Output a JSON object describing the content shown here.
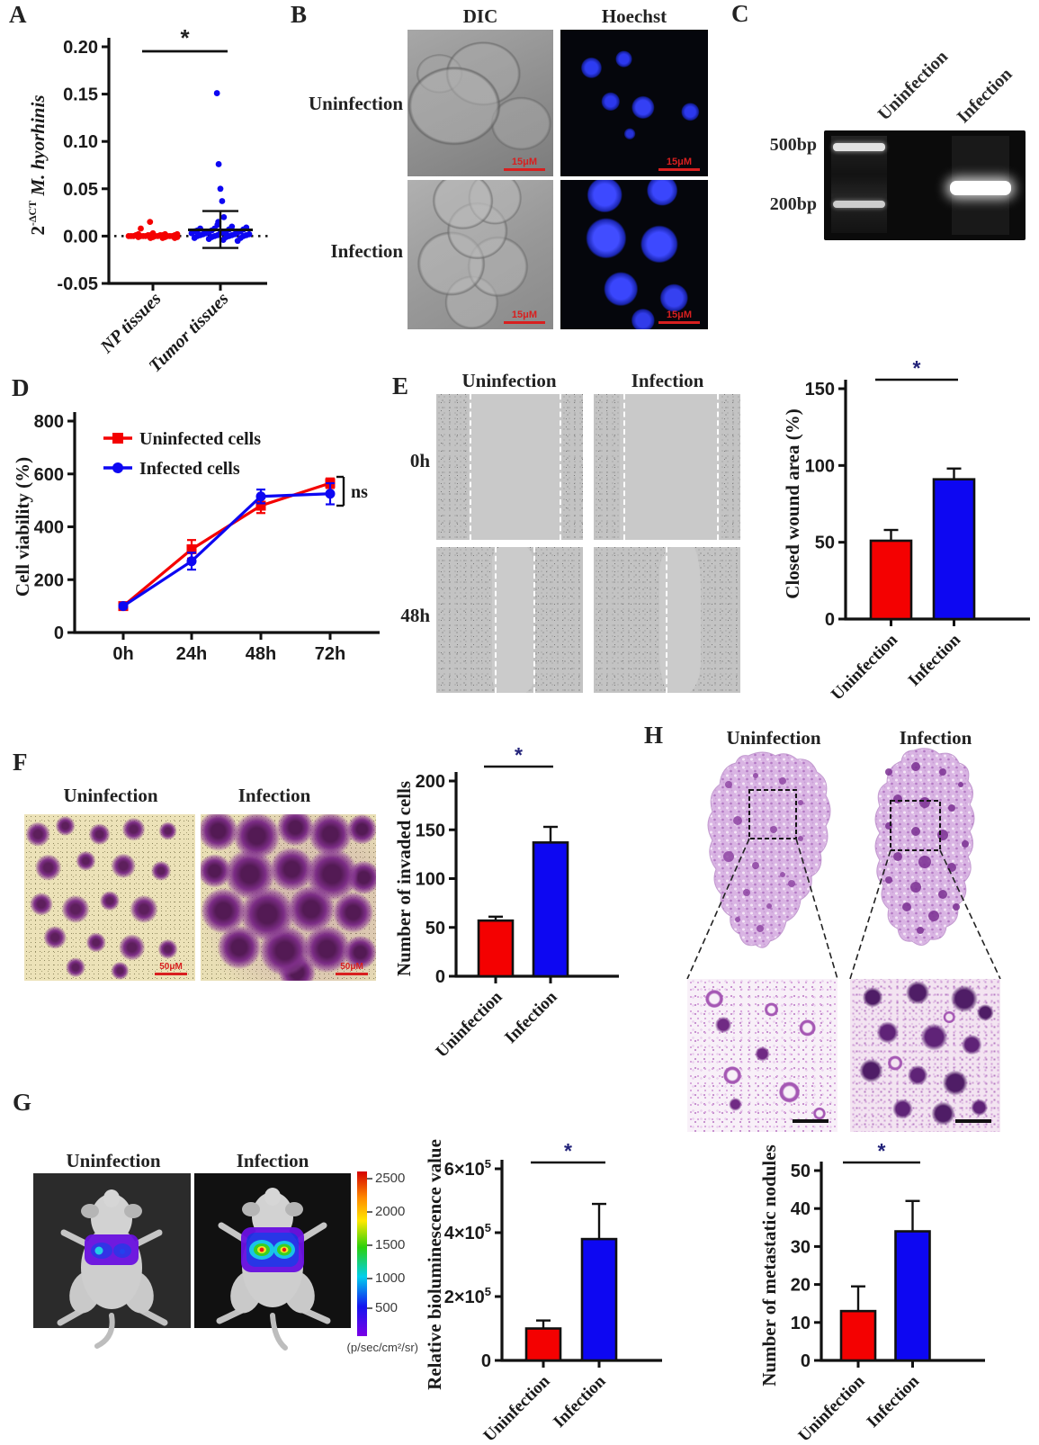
{
  "colors": {
    "red": "#f40101",
    "blue": "#0d07f2",
    "axis": "#111111",
    "star_black": "#222222",
    "star_navy": "#23237a",
    "scale_red": "#d81f1f"
  },
  "panel_a": {
    "letter": "A"
  },
  "panel_b": {
    "letter": "B",
    "col1": "DIC",
    "col2": "Hoechst",
    "row1": "Uninfection",
    "row2": "Infection",
    "scalebar": "15μM"
  },
  "panel_c": {
    "letter": "C",
    "marker1": "500bp",
    "marker2": "200bp",
    "lane1": "Uninfection",
    "lane2": "Infection"
  },
  "panel_d": {
    "letter": "D"
  },
  "panel_e": {
    "letter": "E",
    "col1": "Uninfection",
    "col2": "Infection",
    "row1": "0h",
    "row2": "48h"
  },
  "panel_f": {
    "letter": "F",
    "col1": "Uninfection",
    "col2": "Infection",
    "scalebar": "50μM"
  },
  "panel_g": {
    "letter": "G",
    "col1": "Uninfection",
    "col2": "Infection",
    "colorbar": {
      "ticks": [
        "2500",
        "2000",
        "1500",
        "1000",
        "500"
      ],
      "unit": "(p/sec/cm²/sr)"
    }
  },
  "panel_h": {
    "letter": "H",
    "col1": "Uninfection",
    "col2": "Infection"
  },
  "chart_data": [
    {
      "id": "a",
      "type": "scatter",
      "ylabel": {
        "base": "2",
        "sup": "-ΔCT",
        "italic": " M. hyorhinis"
      },
      "categories": [
        "NP tissues",
        "Tumor tissues"
      ],
      "yticks": [
        0.2,
        0.15,
        0.1,
        0.05,
        0.0,
        -0.05
      ],
      "yticklabels": [
        "0.20",
        "0.15",
        "0.10",
        "0.05",
        "0.00",
        "-0.05"
      ],
      "ylim": [
        -0.05,
        0.2
      ],
      "significance": "*",
      "zero_line": true,
      "series": [
        {
          "name": "NP tissues",
          "color": "red",
          "values": [
            0.015,
            0.008,
            0.003,
            0.002,
            0.002,
            0.002,
            0.001,
            0.001,
            0.001,
            0.001,
            0.001,
            0.001,
            0,
            0,
            0,
            0,
            0,
            0,
            0,
            0,
            0,
            0,
            0,
            -0.001,
            -0.001,
            -0.001,
            -0.001,
            -0.002,
            -0.002,
            -0.002
          ]
        },
        {
          "name": "Tumor tissues",
          "color": "blue",
          "mean": 0.0065,
          "whisker_high": 0.0265,
          "whisker_low": -0.0125,
          "values": [
            0.151,
            0.076,
            0.05,
            0.037,
            0.02,
            0.015,
            0.012,
            0.01,
            0.009,
            0.008,
            0.008,
            0.007,
            0.007,
            0.006,
            0.006,
            0.005,
            0.005,
            0.005,
            0.004,
            0.004,
            0.004,
            0.003,
            0.003,
            0.003,
            0.002,
            0.002,
            0.002,
            0.001,
            0.001,
            0.001,
            0.001,
            0,
            0,
            0,
            0,
            -0.001,
            -0.001,
            -0.002,
            -0.002,
            -0.003,
            -0.004,
            -0.005
          ]
        }
      ]
    },
    {
      "id": "d",
      "type": "line",
      "ylabel": "Cell viability (%)",
      "categories": [
        "0h",
        "24h",
        "48h",
        "72h"
      ],
      "yticks": [
        0,
        200,
        400,
        600,
        800
      ],
      "ylim": [
        0,
        800
      ],
      "annotation": "ns",
      "series": [
        {
          "name": "Uninfected cells",
          "color": "red",
          "marker": "square",
          "values": [
            100,
            315,
            480,
            565
          ],
          "errors": [
            0,
            35,
            28,
            18
          ]
        },
        {
          "name": "Infected cells",
          "color": "blue",
          "marker": "circle",
          "values": [
            100,
            270,
            515,
            525
          ],
          "errors": [
            0,
            32,
            26,
            40
          ]
        }
      ]
    },
    {
      "id": "e",
      "type": "bar",
      "ylabel": "Closed wound area (%)",
      "categories": [
        "Uninfection",
        "Infection"
      ],
      "values": [
        51,
        91
      ],
      "errors": [
        7,
        7
      ],
      "yticks": [
        0,
        50,
        100,
        150
      ],
      "ylim": [
        0,
        150
      ],
      "significance": "*",
      "colors": [
        "red",
        "blue"
      ]
    },
    {
      "id": "f",
      "type": "bar",
      "ylabel": "Number of invaded cells",
      "categories": [
        "Uninfection",
        "Infection"
      ],
      "values": [
        57,
        137
      ],
      "errors": [
        4,
        16
      ],
      "yticks": [
        0,
        50,
        100,
        150,
        200
      ],
      "ylim": [
        0,
        200
      ],
      "significance": "*",
      "colors": [
        "red",
        "blue"
      ]
    },
    {
      "id": "g",
      "type": "bar",
      "ylabel": "Relative bioluminescence value",
      "categories": [
        "Uninfection",
        "Infection"
      ],
      "values": [
        100000,
        380000
      ],
      "errors": [
        25000,
        110000
      ],
      "yticks": [
        0,
        200000,
        400000,
        600000
      ],
      "yticklabels": [
        "0",
        "2×10^5",
        "4×10^5",
        "6×10^5"
      ],
      "ylim": [
        0,
        600000
      ],
      "significance": "*",
      "colors": [
        "red",
        "blue"
      ]
    },
    {
      "id": "h",
      "type": "bar",
      "ylabel": "Number of metastatic nodules",
      "categories": [
        "Uninfection",
        "Infection"
      ],
      "values": [
        13,
        34
      ],
      "errors": [
        6.5,
        8
      ],
      "yticks": [
        0,
        10,
        20,
        30,
        40,
        50
      ],
      "ylim": [
        0,
        50
      ],
      "significance": "*",
      "colors": [
        "red",
        "blue"
      ]
    }
  ]
}
